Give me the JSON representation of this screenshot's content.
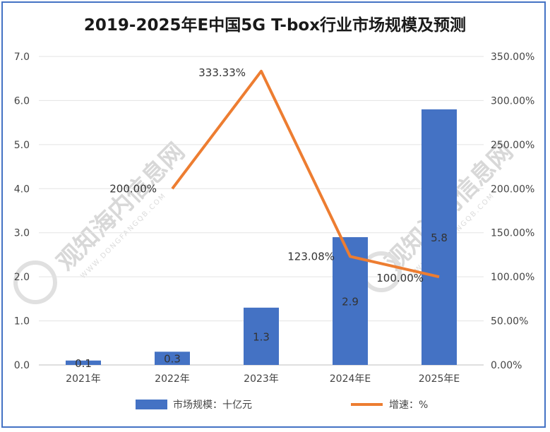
{
  "chart_data": {
    "type": "bar",
    "title": "2019-2025年E中国5G T-box行业市场规模及预测",
    "categories": [
      "2021年",
      "2022年",
      "2023年",
      "2024年E",
      "2025年E"
    ],
    "y_left": {
      "ticks": [
        "0.0",
        "1.0",
        "2.0",
        "3.0",
        "4.0",
        "5.0",
        "6.0",
        "7.0"
      ],
      "range": [
        0,
        7
      ]
    },
    "y_right": {
      "ticks": [
        "0.00%",
        "50.00%",
        "100.00%",
        "150.00%",
        "200.00%",
        "250.00%",
        "300.00%",
        "350.00%"
      ],
      "range": [
        0,
        350
      ]
    },
    "series": [
      {
        "name": "市场规模：十亿元",
        "kind": "bar",
        "axis": "left",
        "color": "#4472c4",
        "values": [
          0.1,
          0.3,
          1.3,
          2.9,
          5.8
        ],
        "labels": [
          "0.1",
          "0.3",
          "1.3",
          "2.9",
          "5.8"
        ]
      },
      {
        "name": "增速：%",
        "kind": "line",
        "axis": "right",
        "color": "#ed7d31",
        "values": [
          null,
          200.0,
          333.33,
          123.08,
          100.0
        ],
        "labels": [
          "",
          "200.00%",
          "333.33%",
          "123.08%",
          "100.00%"
        ]
      }
    ],
    "grid": true,
    "legend_position": "bottom"
  },
  "watermark": {
    "brand_cn": "观知海内信息网",
    "brand_en": "WWW.DONGFANGQB.COM"
  }
}
